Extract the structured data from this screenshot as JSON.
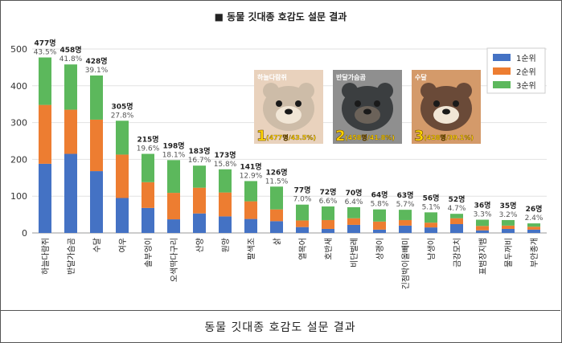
{
  "chart_data": {
    "type": "bar",
    "stacked": true,
    "title": "■ 동물 깃대종 호감도 설문 결과",
    "xlabel": "",
    "ylabel": "",
    "ylim": [
      0,
      500
    ],
    "yticks": [
      0,
      100,
      200,
      300,
      400,
      500
    ],
    "grid": true,
    "legend_position": "top-right",
    "categories": [
      "하늘다람쥐",
      "반달가슴곰",
      "수달",
      "여우",
      "솔부엉이",
      "오색딱다구리",
      "산양",
      "원앙",
      "팔색조",
      "삵",
      "열목어",
      "호반새",
      "비단벌레",
      "상괭이",
      "긴점박이올빼미",
      "남생이",
      "금강모치",
      "표범장지뱀",
      "물두꺼비",
      "부안종개"
    ],
    "series": [
      {
        "name": "1순위",
        "color": "#4472c4",
        "values": [
          188,
          215,
          168,
          95,
          68,
          37,
          53,
          45,
          38,
          32,
          16,
          11,
          22,
          9,
          20,
          15,
          24,
          7,
          11,
          9
        ]
      },
      {
        "name": "2순위",
        "color": "#ed7d31",
        "values": [
          160,
          120,
          140,
          118,
          70,
          72,
          70,
          65,
          48,
          32,
          18,
          24,
          18,
          22,
          15,
          13,
          16,
          12,
          9,
          8
        ]
      },
      {
        "name": "3순위",
        "color": "#5cb85c",
        "values": [
          129,
          123,
          120,
          92,
          77,
          89,
          60,
          63,
          55,
          62,
          43,
          37,
          30,
          33,
          28,
          28,
          12,
          17,
          15,
          9
        ]
      }
    ],
    "totals_labels": [
      "477명",
      "458명",
      "428명",
      "305명",
      "215명",
      "198명",
      "183명",
      "173명",
      "141명",
      "126명",
      "77명",
      "72명",
      "70명",
      "64명",
      "63명",
      "56명",
      "52명",
      "36명",
      "35명",
      "26명"
    ],
    "percent_labels": [
      "43.5%",
      "41.8%",
      "39.1%",
      "27.8%",
      "19.6%",
      "18.1%",
      "16.7%",
      "15.8%",
      "12.9%",
      "11.5%",
      "7.0%",
      "6.6%",
      "6.4%",
      "5.8%",
      "5.7%",
      "5.1%",
      "4.7%",
      "3.3%",
      "3.2%",
      "2.4%"
    ]
  },
  "insets": [
    {
      "name": "하늘다람쥐",
      "rank": "1",
      "stat": "(477명/43.5%)",
      "bg": "#e9d2bd",
      "body": "#cdbca8"
    },
    {
      "name": "반달가슴곰",
      "rank": "2",
      "stat": "(458명/41.8%)",
      "bg": "#8f8f8f",
      "body": "#3b3e40"
    },
    {
      "name": "수달",
      "rank": "3",
      "stat": "(428명/39.1%)",
      "bg": "#d49a6a",
      "body": "#6a4a38"
    }
  ],
  "caption": "동물 깃대종 호감도 설문 결과"
}
